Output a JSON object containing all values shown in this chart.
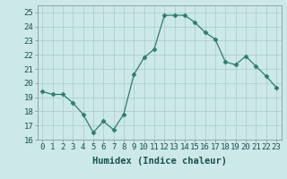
{
  "x": [
    0,
    1,
    2,
    3,
    4,
    5,
    6,
    7,
    8,
    9,
    10,
    11,
    12,
    13,
    14,
    15,
    16,
    17,
    18,
    19,
    20,
    21,
    22,
    23
  ],
  "y": [
    19.4,
    19.2,
    19.2,
    18.6,
    17.8,
    16.5,
    17.3,
    16.7,
    17.8,
    20.6,
    21.8,
    22.4,
    24.8,
    24.8,
    24.8,
    24.3,
    23.6,
    23.1,
    21.5,
    21.3,
    21.9,
    21.2,
    20.5,
    19.7
  ],
  "line_color": "#2e7d6e",
  "marker": "D",
  "marker_size": 2.5,
  "bg_color": "#cce8e8",
  "grid_color": "#b0d0d0",
  "xlabel": "Humidex (Indice chaleur)",
  "ylim": [
    16,
    25.5
  ],
  "yticks": [
    16,
    17,
    18,
    19,
    20,
    21,
    22,
    23,
    24,
    25
  ],
  "xticks": [
    0,
    1,
    2,
    3,
    4,
    5,
    6,
    7,
    8,
    9,
    10,
    11,
    12,
    13,
    14,
    15,
    16,
    17,
    18,
    19,
    20,
    21,
    22,
    23
  ],
  "label_fontsize": 7.5,
  "tick_fontsize": 6.5
}
